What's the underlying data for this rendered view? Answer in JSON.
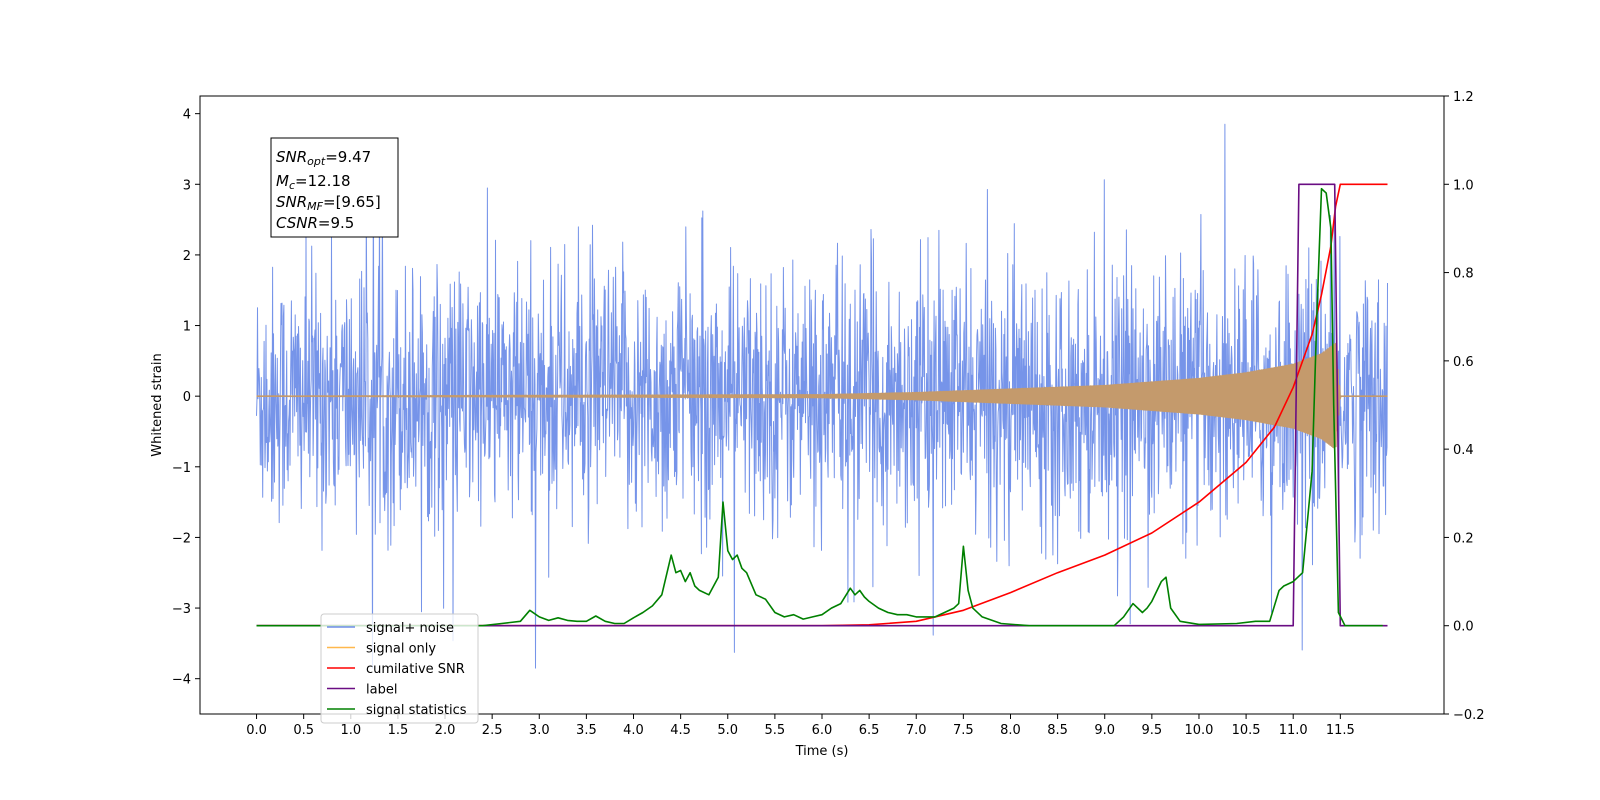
{
  "chart_data": {
    "type": "line",
    "title": "",
    "xlabel": "Time (s)",
    "ylabel": "Whitened strain",
    "ylabel_right": "",
    "xlim": [
      -0.6,
      12.6
    ],
    "ylim": [
      -4.5,
      4.25
    ],
    "ylim_right": [
      -0.2,
      1.2
    ],
    "x_ticks": [
      0.0,
      0.5,
      1.0,
      1.5,
      2.0,
      2.5,
      3.0,
      3.5,
      4.0,
      4.5,
      5.0,
      5.5,
      6.0,
      6.5,
      7.0,
      7.5,
      8.0,
      8.5,
      9.0,
      9.5,
      10.0,
      10.5,
      11.0,
      11.5
    ],
    "x_tick_labels": [
      "0.0",
      "0.5",
      "1.0",
      "1.5",
      "2.0",
      "2.5",
      "3.0",
      "3.5",
      "4.0",
      "4.5",
      "5.0",
      "5.5",
      "6.0",
      "6.5",
      "7.0",
      "7.5",
      "8.0",
      "8.5",
      "9.0",
      "9.5",
      "10.0",
      "10.5",
      "11.0",
      "11.5"
    ],
    "y_ticks": [
      -4,
      -3,
      -2,
      -1,
      0,
      1,
      2,
      3,
      4
    ],
    "y_tick_labels": [
      "−4",
      "−3",
      "−2",
      "−1",
      "0",
      "1",
      "2",
      "3",
      "4"
    ],
    "y_right_ticks": [
      -0.2,
      0.0,
      0.2,
      0.4,
      0.6,
      0.8,
      1.0,
      1.2
    ],
    "y_right_tick_labels": [
      "−0.2",
      "0.0",
      "0.2",
      "0.4",
      "0.6",
      "0.8",
      "1.0",
      "1.2"
    ],
    "grid": false,
    "legend_position": "lower-left",
    "annotation": {
      "lines": [
        {
          "var": "SNR",
          "sub": "opt",
          "rest": "=9.47"
        },
        {
          "var": "M",
          "sub": "c",
          "rest": "=12.18"
        },
        {
          "var": "SNR",
          "sub": "MF",
          "rest": "=[9.65]"
        },
        {
          "var": "CSNR",
          "sub": "",
          "rest": "=9.5"
        }
      ]
    },
    "series": [
      {
        "name": "signal+ noise",
        "axis": "left",
        "color": "#6f8ee8",
        "kind": "noise",
        "x_range": [
          0.0,
          12.0
        ],
        "amplitude_typical": 1.5,
        "amplitude_peak": 3.85
      },
      {
        "name": "signal only",
        "axis": "left",
        "color": "#ffb84d",
        "kind": "chirp",
        "x_range": [
          0.0,
          12.0
        ],
        "envelope_x": [
          0.0,
          6.0,
          7.0,
          8.0,
          9.0,
          10.0,
          10.5,
          11.0,
          11.3,
          11.45,
          11.5,
          12.0
        ],
        "envelope_y": [
          0.0,
          0.02,
          0.05,
          0.1,
          0.15,
          0.25,
          0.33,
          0.45,
          0.6,
          0.75,
          0.0,
          0.0
        ]
      },
      {
        "name": "cumilative SNR",
        "axis": "right",
        "color": "#ff0000",
        "x": [
          0.0,
          6.0,
          6.5,
          7.0,
          7.5,
          8.0,
          8.5,
          9.0,
          9.5,
          10.0,
          10.5,
          10.8,
          11.0,
          11.2,
          11.3,
          11.4,
          11.45,
          11.5,
          12.0
        ],
        "y": [
          0.0,
          0.0,
          0.002,
          0.01,
          0.035,
          0.075,
          0.12,
          0.16,
          0.21,
          0.28,
          0.37,
          0.45,
          0.54,
          0.66,
          0.75,
          0.86,
          0.95,
          1.0,
          1.0
        ]
      },
      {
        "name": "label",
        "axis": "right",
        "color": "#6a0d83",
        "x": [
          0.0,
          11.0,
          11.06,
          11.44,
          11.5,
          12.0
        ],
        "y": [
          0.0,
          0.0,
          1.0,
          1.0,
          0.0,
          0.0
        ]
      },
      {
        "name": "signal statistics",
        "axis": "right",
        "color": "#008000",
        "x": [
          0.0,
          2.4,
          2.6,
          2.8,
          2.9,
          3.0,
          3.1,
          3.2,
          3.3,
          3.4,
          3.5,
          3.6,
          3.7,
          3.8,
          3.9,
          4.0,
          4.1,
          4.2,
          4.3,
          4.4,
          4.45,
          4.5,
          4.55,
          4.6,
          4.65,
          4.7,
          4.8,
          4.85,
          4.9,
          4.95,
          5.0,
          5.05,
          5.1,
          5.15,
          5.2,
          5.3,
          5.4,
          5.5,
          5.6,
          5.7,
          5.8,
          5.9,
          6.0,
          6.1,
          6.2,
          6.3,
          6.35,
          6.4,
          6.45,
          6.5,
          6.6,
          6.7,
          6.8,
          6.9,
          7.0,
          7.1,
          7.2,
          7.3,
          7.4,
          7.45,
          7.5,
          7.55,
          7.6,
          7.7,
          7.9,
          8.2,
          9.1,
          9.2,
          9.3,
          9.4,
          9.45,
          9.5,
          9.6,
          9.65,
          9.7,
          9.8,
          10.0,
          10.4,
          10.6,
          10.75,
          10.85,
          10.9,
          11.0,
          11.1,
          11.2,
          11.25,
          11.3,
          11.35,
          11.4,
          11.43,
          11.48,
          11.55,
          11.95
        ],
        "y": [
          0.0,
          0.0,
          0.005,
          0.01,
          0.035,
          0.02,
          0.012,
          0.018,
          0.012,
          0.01,
          0.01,
          0.022,
          0.01,
          0.005,
          0.005,
          0.018,
          0.03,
          0.045,
          0.07,
          0.16,
          0.12,
          0.125,
          0.1,
          0.12,
          0.09,
          0.08,
          0.07,
          0.09,
          0.11,
          0.28,
          0.17,
          0.15,
          0.16,
          0.13,
          0.12,
          0.07,
          0.06,
          0.03,
          0.02,
          0.025,
          0.015,
          0.02,
          0.025,
          0.04,
          0.05,
          0.085,
          0.07,
          0.08,
          0.065,
          0.055,
          0.04,
          0.03,
          0.025,
          0.025,
          0.02,
          0.02,
          0.02,
          0.03,
          0.04,
          0.05,
          0.18,
          0.08,
          0.04,
          0.02,
          0.005,
          0.0,
          0.0,
          0.02,
          0.05,
          0.03,
          0.04,
          0.055,
          0.1,
          0.11,
          0.04,
          0.01,
          0.003,
          0.005,
          0.01,
          0.01,
          0.08,
          0.09,
          0.1,
          0.12,
          0.35,
          0.7,
          0.99,
          0.98,
          0.9,
          0.5,
          0.03,
          0.0,
          0.0
        ]
      }
    ]
  }
}
